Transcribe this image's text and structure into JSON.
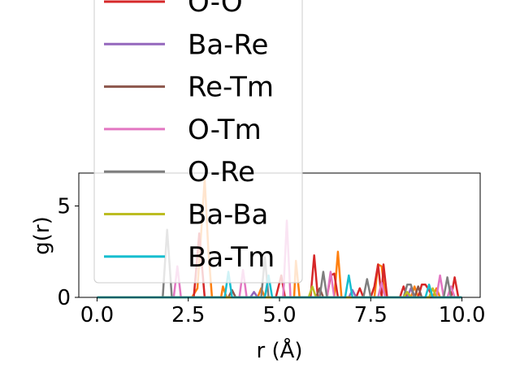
{
  "chart_data": {
    "type": "line",
    "title": "",
    "xlabel": "r (Å)",
    "ylabel": "g(r)",
    "xlim": [
      -0.5,
      10.5
    ],
    "ylim": [
      0,
      6.8
    ],
    "xticks": [
      0.0,
      2.5,
      5.0,
      7.5,
      10.0
    ],
    "xtick_labels": [
      "0.0",
      "2.5",
      "5.0",
      "7.5",
      "10.0"
    ],
    "yticks": [
      0,
      5
    ],
    "ytick_labels": [
      "0",
      "5"
    ],
    "grid": false,
    "legend_position": "upper-left, extends above plot",
    "series": [
      {
        "name": "",
        "color": "#ff7f0e",
        "points": [
          [
            0,
            0
          ],
          [
            2.6,
            0
          ],
          [
            2.75,
            0.5
          ],
          [
            2.85,
            3.4
          ],
          [
            2.95,
            6.5
          ],
          [
            3.05,
            2.6
          ],
          [
            3.15,
            0
          ],
          [
            3.4,
            0
          ],
          [
            3.45,
            0.6
          ],
          [
            3.55,
            0
          ],
          [
            4.4,
            0
          ],
          [
            4.5,
            0.5
          ],
          [
            4.6,
            0
          ],
          [
            5.4,
            0
          ],
          [
            5.45,
            2.0
          ],
          [
            5.55,
            0
          ],
          [
            6.5,
            0
          ],
          [
            6.6,
            2.5
          ],
          [
            6.7,
            0
          ],
          [
            7.6,
            0
          ],
          [
            7.7,
            1.8
          ],
          [
            7.8,
            1.7
          ],
          [
            7.9,
            0
          ],
          [
            8.6,
            0
          ],
          [
            8.7,
            0.6
          ],
          [
            8.8,
            0
          ],
          [
            9.2,
            0
          ],
          [
            9.3,
            0.5
          ],
          [
            9.4,
            0
          ],
          [
            10,
            0
          ]
        ]
      },
      {
        "name": "O-O",
        "color": "#d62728",
        "points": [
          [
            0,
            0
          ],
          [
            2.65,
            0
          ],
          [
            2.8,
            3.5
          ],
          [
            2.95,
            0
          ],
          [
            4.9,
            0
          ],
          [
            5.05,
            1.2
          ],
          [
            5.15,
            0
          ],
          [
            5.85,
            0
          ],
          [
            5.95,
            2.3
          ],
          [
            6.05,
            0
          ],
          [
            6.3,
            0
          ],
          [
            6.4,
            1.2
          ],
          [
            6.5,
            1.3
          ],
          [
            6.6,
            0
          ],
          [
            7.1,
            0
          ],
          [
            7.2,
            0.5
          ],
          [
            7.3,
            0
          ],
          [
            7.5,
            0
          ],
          [
            7.6,
            0.6
          ],
          [
            7.7,
            1.8
          ],
          [
            7.8,
            0
          ],
          [
            7.85,
            1.8
          ],
          [
            7.95,
            0
          ],
          [
            8.3,
            0
          ],
          [
            8.4,
            0.6
          ],
          [
            8.5,
            0
          ],
          [
            8.8,
            0
          ],
          [
            8.9,
            0.7
          ],
          [
            9.0,
            0.7
          ],
          [
            9.1,
            0.4
          ],
          [
            9.2,
            0
          ],
          [
            9.7,
            0
          ],
          [
            9.8,
            1.1
          ],
          [
            9.9,
            0
          ],
          [
            10,
            0
          ]
        ]
      },
      {
        "name": "Ba-Re",
        "color": "#9467bd",
        "points": [
          [
            0,
            0
          ],
          [
            4.2,
            0
          ],
          [
            4.3,
            0.3
          ],
          [
            4.4,
            0
          ],
          [
            6.9,
            0
          ],
          [
            7.0,
            0.4
          ],
          [
            7.1,
            0
          ],
          [
            8.5,
            0
          ],
          [
            8.6,
            0.5
          ],
          [
            8.7,
            0
          ],
          [
            10,
            0
          ]
        ]
      },
      {
        "name": "Re-Tm",
        "color": "#8c564b",
        "points": [
          [
            0,
            0
          ],
          [
            3.6,
            0
          ],
          [
            3.7,
            0.4
          ],
          [
            3.8,
            0
          ],
          [
            6.0,
            0
          ],
          [
            6.1,
            0.5
          ],
          [
            6.2,
            0
          ],
          [
            8.7,
            0
          ],
          [
            8.8,
            0.6
          ],
          [
            8.9,
            0
          ],
          [
            10,
            0
          ]
        ]
      },
      {
        "name": "O-Tm",
        "color": "#e377c2",
        "points": [
          [
            0,
            0
          ],
          [
            2.1,
            0
          ],
          [
            2.2,
            1.7
          ],
          [
            2.3,
            0
          ],
          [
            3.9,
            0
          ],
          [
            4.0,
            1.5
          ],
          [
            4.1,
            0
          ],
          [
            5.1,
            0
          ],
          [
            5.2,
            4.2
          ],
          [
            5.3,
            0
          ],
          [
            6.3,
            0
          ],
          [
            6.4,
            1.4
          ],
          [
            6.5,
            0
          ],
          [
            7.7,
            0
          ],
          [
            7.8,
            0.8
          ],
          [
            7.9,
            0
          ],
          [
            9.3,
            0
          ],
          [
            9.4,
            1.2
          ],
          [
            9.5,
            0
          ],
          [
            9.6,
            0
          ],
          [
            9.7,
            0.6
          ],
          [
            9.8,
            0
          ],
          [
            10,
            0
          ]
        ]
      },
      {
        "name": "O-Re",
        "color": "#7f7f7f",
        "points": [
          [
            0,
            0
          ],
          [
            1.8,
            0
          ],
          [
            1.92,
            3.7
          ],
          [
            2.05,
            0
          ],
          [
            4.5,
            0
          ],
          [
            4.6,
            2.2
          ],
          [
            4.7,
            0
          ],
          [
            6.1,
            0
          ],
          [
            6.2,
            1.4
          ],
          [
            6.3,
            0
          ],
          [
            7.3,
            0
          ],
          [
            7.4,
            1.0
          ],
          [
            7.5,
            0
          ],
          [
            8.4,
            0
          ],
          [
            8.5,
            0.7
          ],
          [
            8.6,
            0.7
          ],
          [
            8.7,
            0
          ],
          [
            9.5,
            0
          ],
          [
            9.6,
            1.1
          ],
          [
            9.7,
            0
          ],
          [
            10,
            0
          ]
        ]
      },
      {
        "name": "Ba-Ba",
        "color": "#bcbd22",
        "points": [
          [
            0,
            0
          ],
          [
            5.8,
            0
          ],
          [
            5.9,
            0.6
          ],
          [
            6.0,
            0
          ],
          [
            8.4,
            0
          ],
          [
            8.5,
            0.3
          ],
          [
            8.6,
            0
          ],
          [
            9.1,
            0
          ],
          [
            9.2,
            0.5
          ],
          [
            9.3,
            0
          ],
          [
            10,
            0
          ]
        ]
      },
      {
        "name": "Ba-Tm",
        "color": "#17becf",
        "points": [
          [
            0,
            0
          ],
          [
            3.5,
            0
          ],
          [
            3.6,
            1.4
          ],
          [
            3.7,
            0
          ],
          [
            4.6,
            0
          ],
          [
            4.7,
            1.2
          ],
          [
            4.8,
            0
          ],
          [
            6.8,
            0
          ],
          [
            6.9,
            1.2
          ],
          [
            7.0,
            0
          ],
          [
            9.0,
            0
          ],
          [
            9.1,
            0.7
          ],
          [
            9.2,
            0
          ],
          [
            10,
            0
          ]
        ]
      }
    ],
    "legend_entries": [
      {
        "name": "O-O",
        "color": "#d62728"
      },
      {
        "name": "Ba-Re",
        "color": "#9467bd"
      },
      {
        "name": "Re-Tm",
        "color": "#8c564b"
      },
      {
        "name": "O-Tm",
        "color": "#e377c2"
      },
      {
        "name": "O-Re",
        "color": "#7f7f7f"
      },
      {
        "name": "Ba-Ba",
        "color": "#bcbd22"
      },
      {
        "name": "Ba-Tm",
        "color": "#17becf"
      }
    ]
  }
}
